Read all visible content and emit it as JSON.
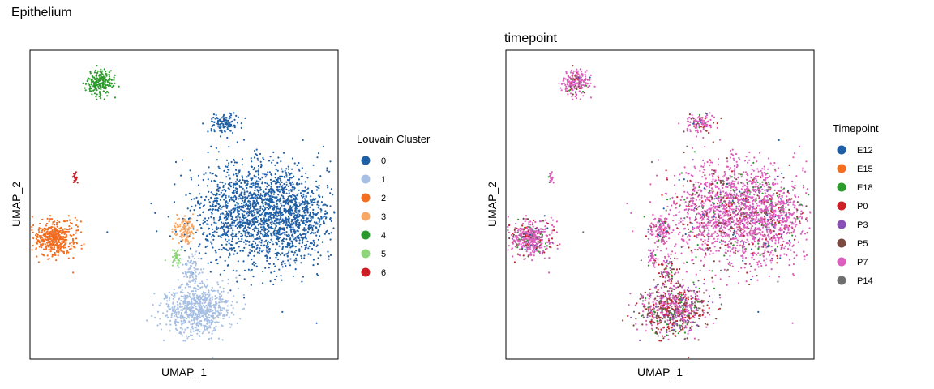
{
  "figure_title": "Epithelium",
  "chart_data": [
    {
      "type": "scatter",
      "title": "",
      "xlabel": "UMAP_1",
      "ylabel": "UMAP_2",
      "xticks": false,
      "yticks": false,
      "grid": false,
      "legend": {
        "title": "Louvain Cluster",
        "placement": "right",
        "entries": [
          {
            "label": "0",
            "color": "#1f5fa6"
          },
          {
            "label": "1",
            "color": "#a6bfe3"
          },
          {
            "label": "2",
            "color": "#f26d1f"
          },
          {
            "label": "3",
            "color": "#f7a867"
          },
          {
            "label": "4",
            "color": "#2a9a2a"
          },
          {
            "label": "5",
            "color": "#8fd67a"
          },
          {
            "label": "6",
            "color": "#cc1f26"
          }
        ]
      }
    },
    {
      "type": "scatter",
      "title": "timepoint",
      "xlabel": "UMAP_1",
      "ylabel": "UMAP_2",
      "xticks": false,
      "yticks": false,
      "grid": false,
      "legend": {
        "title": "Timepoint",
        "placement": "right",
        "entries": [
          {
            "label": "E12",
            "color": "#1f5fa6"
          },
          {
            "label": "E15",
            "color": "#f26d1f"
          },
          {
            "label": "E18",
            "color": "#2a9a2a"
          },
          {
            "label": "P0",
            "color": "#cc1f26"
          },
          {
            "label": "P3",
            "color": "#8a4fb5"
          },
          {
            "label": "P5",
            "color": "#7a4a3e"
          },
          {
            "label": "P7",
            "color": "#dd5fbd"
          },
          {
            "label": "P14",
            "color": "#6f6f6f"
          }
        ]
      }
    }
  ]
}
